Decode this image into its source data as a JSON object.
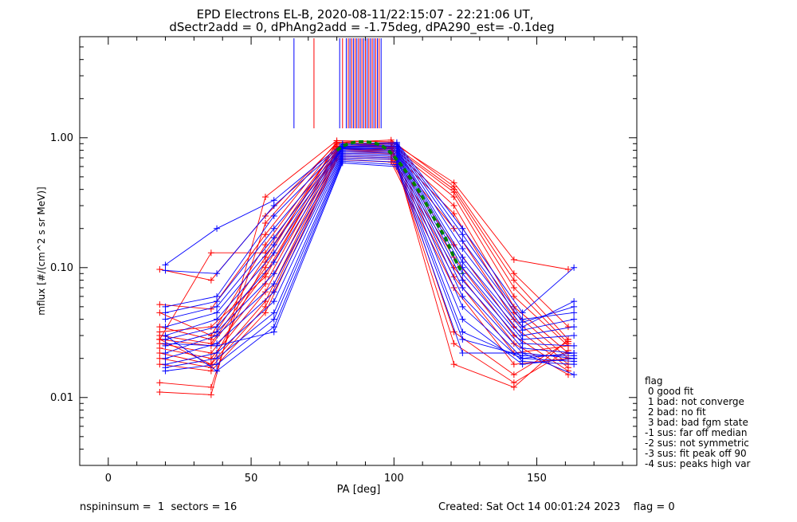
{
  "title_line1": "EPD Electrons EL-B, 2020-08-11/22:15:07 - 22:21:06 UT,",
  "title_line2": "dSectr2add = 0, dPhAng2add = -1.75deg, dPA290_est=  -0.1deg",
  "footer": {
    "left": "nspininsum =  1  sectors = 16",
    "right": "Created: Sat Oct 14 00:01:24 2023    flag = 0"
  },
  "legend": {
    "title": "flag",
    "items": [
      " 0 good fit",
      " 1 bad: not converge",
      " 2 bad: no fit",
      " 3 bad: bad fgm state",
      "-1 sus: far off median",
      "-2 sus: not symmetric",
      "-3 sus: fit peak off 90",
      "-4 sus: peaks high var"
    ]
  },
  "colors": {
    "red": "#ff0000",
    "blue": "#0000ff",
    "fit": "#00dd00",
    "axis": "#000000"
  },
  "chart_data": {
    "type": "line",
    "xlabel": "PA [deg]",
    "ylabel": "mflux [#/(cm^2 s sr MeV)]",
    "xlim": [
      -10,
      185
    ],
    "ylim": [
      0.003,
      6
    ],
    "yscale": "log",
    "xticks": [
      0,
      50,
      100,
      150
    ],
    "xtick_labels": [
      "0",
      "50",
      "100",
      "150"
    ],
    "yticks": [
      0.01,
      0.1,
      1
    ],
    "ytick_labels": [
      "0.01",
      "0.10",
      "1.00"
    ],
    "peak_marker_lines": [
      {
        "pa": 65.0,
        "color": "blue"
      },
      {
        "pa": 72.0,
        "color": "red"
      },
      {
        "pa": 81.0,
        "color": "blue"
      },
      {
        "pa": 82.0,
        "color": "red"
      },
      {
        "pa": 83.3,
        "color": "blue"
      },
      {
        "pa": 84.0,
        "color": "red"
      },
      {
        "pa": 84.6,
        "color": "blue"
      },
      {
        "pa": 85.2,
        "color": "red"
      },
      {
        "pa": 85.8,
        "color": "blue"
      },
      {
        "pa": 86.4,
        "color": "red"
      },
      {
        "pa": 87.0,
        "color": "blue"
      },
      {
        "pa": 87.6,
        "color": "red"
      },
      {
        "pa": 88.2,
        "color": "blue"
      },
      {
        "pa": 88.8,
        "color": "red"
      },
      {
        "pa": 89.4,
        "color": "blue"
      },
      {
        "pa": 90.0,
        "color": "red"
      },
      {
        "pa": 90.6,
        "color": "blue"
      },
      {
        "pa": 91.2,
        "color": "red"
      },
      {
        "pa": 91.8,
        "color": "blue"
      },
      {
        "pa": 92.4,
        "color": "red"
      },
      {
        "pa": 93.0,
        "color": "blue"
      },
      {
        "pa": 93.6,
        "color": "red"
      },
      {
        "pa": 94.2,
        "color": "blue"
      },
      {
        "pa": 94.8,
        "color": "red"
      },
      {
        "pa": 95.5,
        "color": "blue"
      }
    ],
    "series": [
      {
        "color": "red",
        "x": [
          18,
          36,
          55,
          80,
          99,
          121,
          142,
          161
        ],
        "y": [
          0.011,
          0.0105,
          0.35,
          0.95,
          0.93,
          0.45,
          0.115,
          0.097
        ]
      },
      {
        "color": "red",
        "x": [
          18,
          36,
          55,
          80,
          99,
          121,
          142,
          161
        ],
        "y": [
          0.013,
          0.012,
          0.22,
          0.92,
          0.96,
          0.42,
          0.09,
          0.035
        ]
      },
      {
        "color": "red",
        "x": [
          18,
          36,
          55,
          80,
          99,
          121,
          142,
          161
        ],
        "y": [
          0.097,
          0.08,
          0.25,
          0.9,
          0.9,
          0.4,
          0.08,
          0.028
        ]
      },
      {
        "color": "red",
        "x": [
          18,
          36,
          55,
          80,
          99,
          121,
          142,
          161
        ],
        "y": [
          0.052,
          0.048,
          0.18,
          0.88,
          0.88,
          0.38,
          0.07,
          0.026
        ]
      },
      {
        "color": "red",
        "x": [
          18,
          36,
          55,
          80,
          99,
          121,
          142,
          161
        ],
        "y": [
          0.045,
          0.03,
          0.15,
          0.85,
          0.85,
          0.35,
          0.06,
          0.025
        ]
      },
      {
        "color": "red",
        "x": [
          18,
          36,
          55,
          80,
          99,
          121,
          142,
          161
        ],
        "y": [
          0.035,
          0.028,
          0.12,
          0.82,
          0.83,
          0.3,
          0.05,
          0.022
        ]
      },
      {
        "color": "red",
        "x": [
          18,
          36,
          55,
          80,
          99,
          121,
          142,
          161
        ],
        "y": [
          0.03,
          0.026,
          0.1,
          0.8,
          0.8,
          0.26,
          0.045,
          0.02
        ]
      },
      {
        "color": "red",
        "x": [
          18,
          36,
          55,
          80,
          99,
          121,
          142,
          161
        ],
        "y": [
          0.028,
          0.025,
          0.09,
          0.78,
          0.78,
          0.2,
          0.04,
          0.018
        ]
      },
      {
        "color": "red",
        "x": [
          18,
          36,
          55,
          80,
          99,
          121,
          142,
          161
        ],
        "y": [
          0.026,
          0.022,
          0.075,
          0.76,
          0.75,
          0.15,
          0.035,
          0.017
        ]
      },
      {
        "color": "red",
        "x": [
          18,
          36,
          55,
          80,
          99,
          121,
          142,
          161
        ],
        "y": [
          0.024,
          0.02,
          0.065,
          0.74,
          0.72,
          0.12,
          0.03,
          0.016
        ]
      },
      {
        "color": "red",
        "x": [
          18,
          36,
          55,
          80,
          99,
          121,
          142,
          161
        ],
        "y": [
          0.022,
          0.018,
          0.055,
          0.72,
          0.7,
          0.1,
          0.026,
          0.015
        ]
      },
      {
        "color": "red",
        "x": [
          18,
          36,
          55,
          80,
          99,
          121,
          142,
          161
        ],
        "y": [
          0.02,
          0.017,
          0.05,
          0.7,
          0.68,
          0.085,
          0.022,
          0.025
        ]
      },
      {
        "color": "red",
        "x": [
          18,
          36,
          55,
          80,
          99,
          121,
          142,
          161
        ],
        "y": [
          0.018,
          0.016,
          0.045,
          0.68,
          0.65,
          0.07,
          0.018,
          0.02
        ]
      },
      {
        "color": "red",
        "x": [
          18,
          36,
          55,
          80,
          99,
          121,
          142,
          161
        ],
        "y": [
          0.028,
          0.13,
          0.13,
          0.86,
          0.86,
          0.032,
          0.015,
          0.027
        ]
      },
      {
        "color": "red",
        "x": [
          18,
          36,
          55,
          80,
          99,
          121,
          142,
          161
        ],
        "y": [
          0.032,
          0.035,
          0.085,
          0.8,
          0.82,
          0.026,
          0.013,
          0.023
        ]
      },
      {
        "color": "red",
        "x": [
          18,
          36,
          55,
          80,
          99,
          121,
          142,
          161
        ],
        "y": [
          0.028,
          0.018,
          0.11,
          0.92,
          0.9,
          0.018,
          0.012,
          0.028
        ]
      },
      {
        "color": "blue",
        "x": [
          20,
          38,
          58,
          82,
          101,
          124,
          145,
          163
        ],
        "y": [
          0.105,
          0.2,
          0.33,
          0.9,
          0.92,
          0.2,
          0.045,
          0.1
        ]
      },
      {
        "color": "blue",
        "x": [
          20,
          38,
          58,
          82,
          101,
          124,
          145,
          163
        ],
        "y": [
          0.095,
          0.09,
          0.3,
          0.88,
          0.9,
          0.18,
          0.04,
          0.045
        ]
      },
      {
        "color": "blue",
        "x": [
          20,
          38,
          58,
          82,
          101,
          124,
          145,
          163
        ],
        "y": [
          0.05,
          0.06,
          0.25,
          0.86,
          0.88,
          0.16,
          0.038,
          0.05
        ]
      },
      {
        "color": "blue",
        "x": [
          20,
          38,
          58,
          82,
          101,
          124,
          145,
          163
        ],
        "y": [
          0.045,
          0.055,
          0.2,
          0.85,
          0.86,
          0.14,
          0.035,
          0.055
        ]
      },
      {
        "color": "blue",
        "x": [
          20,
          38,
          58,
          82,
          101,
          124,
          145,
          163
        ],
        "y": [
          0.04,
          0.05,
          0.17,
          0.84,
          0.84,
          0.12,
          0.033,
          0.04
        ]
      },
      {
        "color": "blue",
        "x": [
          20,
          38,
          58,
          82,
          101,
          124,
          145,
          163
        ],
        "y": [
          0.035,
          0.045,
          0.15,
          0.83,
          0.82,
          0.11,
          0.03,
          0.035
        ]
      },
      {
        "color": "blue",
        "x": [
          20,
          38,
          58,
          82,
          101,
          124,
          145,
          163
        ],
        "y": [
          0.03,
          0.04,
          0.13,
          0.82,
          0.8,
          0.1,
          0.028,
          0.03
        ]
      },
      {
        "color": "blue",
        "x": [
          20,
          38,
          58,
          82,
          101,
          124,
          145,
          163
        ],
        "y": [
          0.028,
          0.035,
          0.11,
          0.8,
          0.78,
          0.09,
          0.026,
          0.025
        ]
      },
      {
        "color": "blue",
        "x": [
          20,
          38,
          58,
          82,
          101,
          124,
          145,
          163
        ],
        "y": [
          0.025,
          0.032,
          0.09,
          0.78,
          0.76,
          0.08,
          0.024,
          0.022
        ]
      },
      {
        "color": "blue",
        "x": [
          20,
          38,
          58,
          82,
          101,
          124,
          145,
          163
        ],
        "y": [
          0.022,
          0.03,
          0.075,
          0.76,
          0.74,
          0.07,
          0.022,
          0.02
        ]
      },
      {
        "color": "blue",
        "x": [
          20,
          38,
          58,
          82,
          101,
          124,
          145,
          163
        ],
        "y": [
          0.02,
          0.026,
          0.065,
          0.74,
          0.72,
          0.06,
          0.02,
          0.019
        ]
      },
      {
        "color": "blue",
        "x": [
          20,
          38,
          58,
          82,
          101,
          124,
          145,
          163
        ],
        "y": [
          0.018,
          0.022,
          0.055,
          0.72,
          0.7,
          0.05,
          0.019,
          0.018
        ]
      },
      {
        "color": "blue",
        "x": [
          20,
          38,
          58,
          82,
          101,
          124,
          145,
          163
        ],
        "y": [
          0.017,
          0.02,
          0.045,
          0.7,
          0.68,
          0.04,
          0.018,
          0.02
        ]
      },
      {
        "color": "blue",
        "x": [
          20,
          38,
          58,
          82,
          101,
          124,
          145,
          163
        ],
        "y": [
          0.016,
          0.018,
          0.04,
          0.68,
          0.65,
          0.032,
          0.02,
          0.022
        ]
      },
      {
        "color": "blue",
        "x": [
          20,
          38,
          58,
          82,
          101,
          124,
          145,
          163
        ],
        "y": [
          0.03,
          0.016,
          0.035,
          0.66,
          0.62,
          0.028,
          0.021,
          0.021
        ]
      },
      {
        "color": "blue",
        "x": [
          20,
          38,
          58,
          82,
          101,
          124,
          145,
          163
        ],
        "y": [
          0.026,
          0.025,
          0.032,
          0.64,
          0.6,
          0.022,
          0.022,
          0.015
        ]
      }
    ],
    "fit_curve": {
      "color": "green",
      "x": [
        80,
        82,
        84,
        86,
        88,
        90,
        92,
        94,
        96,
        98,
        100,
        103,
        106,
        109,
        112,
        115,
        118,
        121,
        124
      ],
      "y": [
        0.8,
        0.86,
        0.9,
        0.92,
        0.93,
        0.93,
        0.92,
        0.9,
        0.86,
        0.8,
        0.72,
        0.6,
        0.48,
        0.38,
        0.29,
        0.22,
        0.17,
        0.12,
        0.09
      ]
    }
  }
}
